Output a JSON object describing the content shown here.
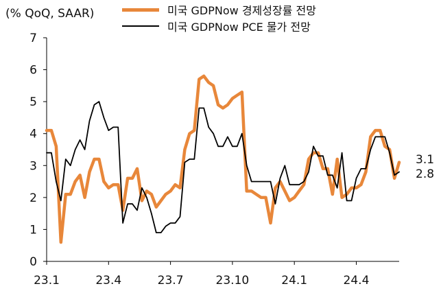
{
  "chart_data": {
    "type": "line",
    "unit_label": "(% QoQ, SAAR)",
    "x_tick_labels": [
      "23.1",
      "23.4",
      "23.7",
      "23.10",
      "24.1",
      "24.4"
    ],
    "x_tick_index": [
      0,
      13,
      26,
      39,
      52,
      65
    ],
    "ylim": [
      0,
      7
    ],
    "yticks": [
      0,
      1,
      2,
      3,
      4,
      5,
      6,
      7
    ],
    "grid": false,
    "legend_position": "top-center",
    "series": [
      {
        "name": "미국 GDPNow 경제성장률 전망",
        "color": "#E8873A",
        "last_label": "3.1",
        "values": [
          4.1,
          4.1,
          3.6,
          0.6,
          2.1,
          2.1,
          2.5,
          2.7,
          2.0,
          2.8,
          3.2,
          3.2,
          2.5,
          2.3,
          2.4,
          2.4,
          1.6,
          2.6,
          2.6,
          2.9,
          1.9,
          2.2,
          2.1,
          1.7,
          1.9,
          2.1,
          2.2,
          2.4,
          2.3,
          3.5,
          4.0,
          4.1,
          5.7,
          5.8,
          5.6,
          5.5,
          4.9,
          4.8,
          4.9,
          5.1,
          5.2,
          5.3,
          2.2,
          2.2,
          2.1,
          2.0,
          2.0,
          1.2,
          2.3,
          2.5,
          2.2,
          1.9,
          2.0,
          2.2,
          2.4,
          3.2,
          3.4,
          3.4,
          2.9,
          2.9,
          2.1,
          3.2,
          2.0,
          2.1,
          2.3,
          2.3,
          2.4,
          2.8,
          3.9,
          4.1,
          4.1,
          3.6,
          3.5,
          2.6,
          3.1
        ]
      },
      {
        "name": "미국 GDPNow PCE 물가 전망",
        "color": "#000000",
        "last_label": "2.8",
        "values": [
          3.4,
          3.4,
          2.5,
          1.9,
          3.2,
          3.0,
          3.5,
          3.8,
          3.5,
          4.4,
          4.9,
          5.0,
          4.5,
          4.1,
          4.2,
          4.2,
          1.2,
          1.8,
          1.8,
          1.6,
          2.3,
          2.0,
          1.5,
          0.9,
          0.9,
          1.1,
          1.2,
          1.2,
          1.4,
          3.1,
          3.2,
          3.2,
          4.8,
          4.8,
          4.2,
          4.0,
          3.6,
          3.6,
          3.9,
          3.6,
          3.6,
          4.0,
          3.0,
          2.5,
          2.5,
          2.5,
          2.5,
          2.5,
          1.8,
          2.6,
          3.0,
          2.4,
          2.4,
          2.4,
          2.5,
          2.8,
          3.6,
          3.3,
          3.3,
          2.7,
          2.7,
          2.3,
          3.4,
          1.9,
          1.9,
          2.6,
          2.9,
          2.9,
          3.5,
          3.9,
          3.9,
          3.9,
          3.4,
          2.7,
          2.8
        ]
      }
    ]
  }
}
